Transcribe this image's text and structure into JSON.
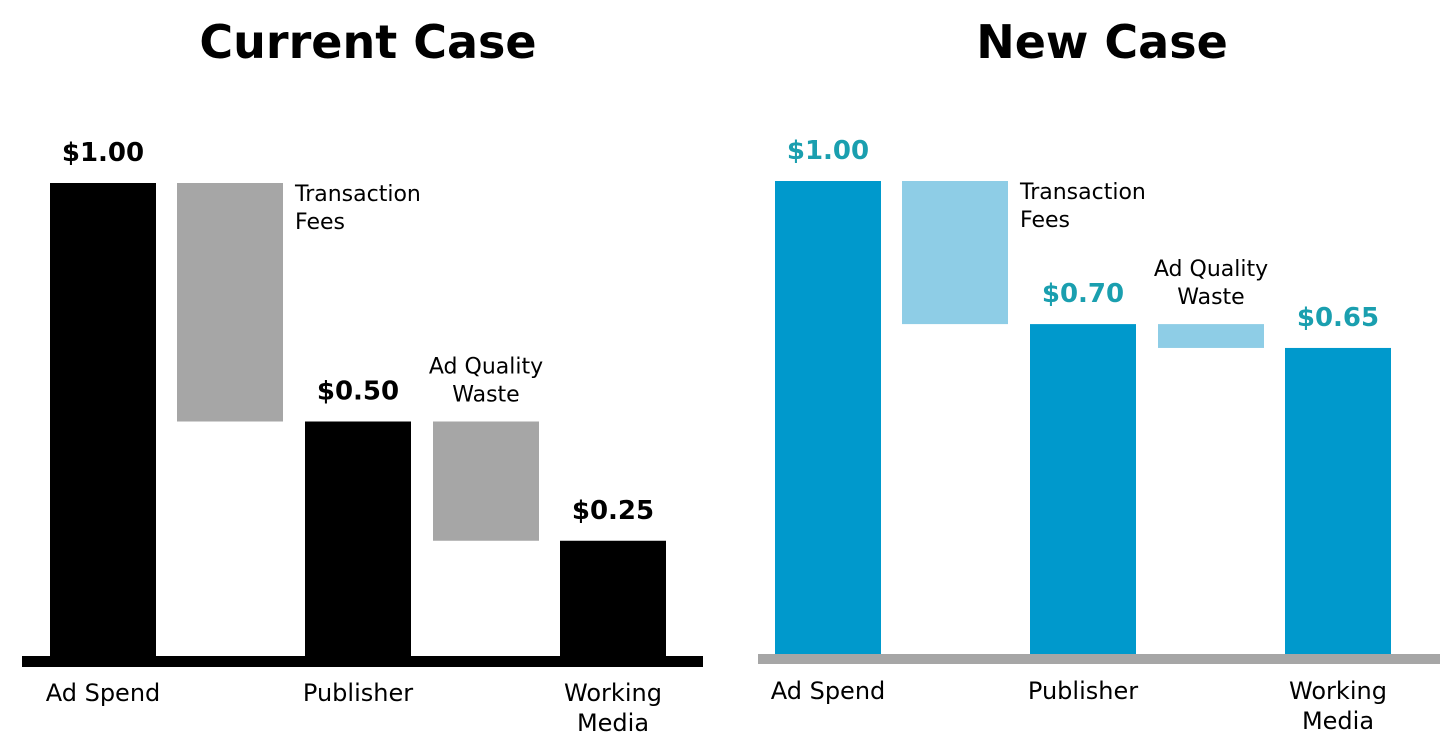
{
  "chart_data": [
    {
      "type": "bar",
      "subtype": "waterfall",
      "title": "Current Case",
      "ylim": [
        0,
        1
      ],
      "categories": [
        "Ad Spend",
        "Transaction Fees",
        "Publisher",
        "Ad Quality Waste",
        "Working Media"
      ],
      "category_labels": [
        "Ad Spend",
        "",
        "Publisher",
        "",
        "Working Media"
      ],
      "steps": [
        {
          "kind": "total",
          "label_lines": [
            "Ad Spend"
          ],
          "value": 1.0,
          "value_label": "$1.00",
          "annotation_lines": []
        },
        {
          "kind": "decrease",
          "label_lines": [],
          "value": 0.5,
          "from": 1.0,
          "to": 0.5,
          "value_label": "",
          "annotation_lines": [
            "Transaction",
            "Fees"
          ]
        },
        {
          "kind": "total",
          "label_lines": [
            "Publisher"
          ],
          "value": 0.5,
          "value_label": "$0.50",
          "annotation_lines": []
        },
        {
          "kind": "decrease",
          "label_lines": [],
          "value": 0.25,
          "from": 0.5,
          "to": 0.25,
          "value_label": "",
          "annotation_lines": [
            "Ad Quality",
            "Waste"
          ]
        },
        {
          "kind": "total",
          "label_lines": [
            "Working",
            "Media"
          ],
          "value": 0.25,
          "value_label": "$0.25",
          "annotation_lines": []
        }
      ],
      "colors": {
        "total": "#000000",
        "decrease": "#a6a6a6",
        "value_text": "#000000",
        "baseline": "#000000"
      }
    },
    {
      "type": "bar",
      "subtype": "waterfall",
      "title": "New Case",
      "ylim": [
        0,
        1
      ],
      "categories": [
        "Ad Spend",
        "Transaction Fees",
        "Publisher",
        "Ad Quality Waste",
        "Working Media"
      ],
      "category_labels": [
        "Ad Spend",
        "",
        "Publisher",
        "",
        "Working Media"
      ],
      "steps": [
        {
          "kind": "total",
          "label_lines": [
            "Ad Spend"
          ],
          "value": 1.0,
          "value_label": "$1.00",
          "annotation_lines": []
        },
        {
          "kind": "decrease",
          "label_lines": [],
          "value": 0.3,
          "from": 1.0,
          "to": 0.7,
          "value_label": "",
          "annotation_lines": [
            "Transaction",
            "Fees"
          ]
        },
        {
          "kind": "total",
          "label_lines": [
            "Publisher"
          ],
          "value": 0.7,
          "value_label": "$0.70",
          "annotation_lines": []
        },
        {
          "kind": "decrease",
          "label_lines": [],
          "value": 0.05,
          "from": 0.7,
          "to": 0.65,
          "value_label": "",
          "annotation_lines": [
            "Ad Quality",
            "Waste"
          ]
        },
        {
          "kind": "total",
          "label_lines": [
            "Working",
            "Media"
          ],
          "value": 0.65,
          "value_label": "$0.65",
          "annotation_lines": []
        }
      ],
      "colors": {
        "total": "#0099cc",
        "decrease": "#8ecde6",
        "value_text": "#1a9faf",
        "baseline": "#a6a6a6"
      }
    }
  ]
}
